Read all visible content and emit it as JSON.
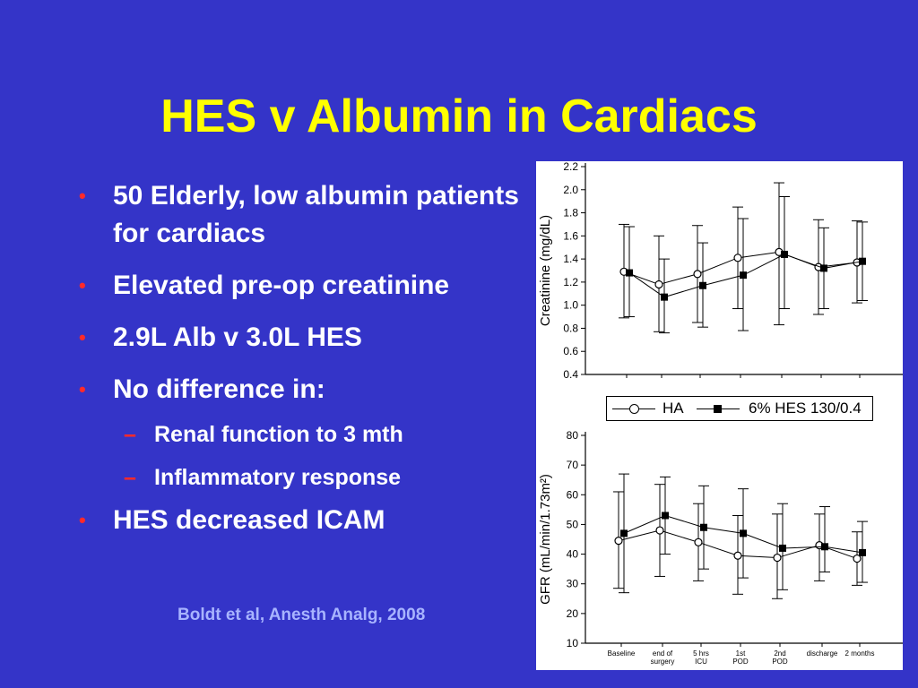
{
  "slide": {
    "title": "HES v Albumin in Cardiacs",
    "bullets": [
      {
        "mark": "•",
        "text": "50 Elderly, low albumin patients for cardiacs"
      },
      {
        "mark": "•",
        "text": "Elevated pre-op creatinine"
      },
      {
        "mark": "•",
        "text": "2.9L Alb v 3.0L HES"
      },
      {
        "mark": "•",
        "text": "No difference in:"
      }
    ],
    "sub_bullets": [
      {
        "mark": "–",
        "text": "Renal function to 3 mth"
      },
      {
        "mark": "–",
        "text": "Inflammatory response"
      }
    ],
    "last_bullet": {
      "mark": "•",
      "text": "HES decreased ICAM"
    },
    "citation": "Boldt et al, Anesth Analg, 2008"
  },
  "colors": {
    "background": "#3434c8",
    "title": "#ffff00",
    "bullet_mark": "#ff2a2a",
    "citation": "#a8b4ff"
  },
  "legend": {
    "ha_label": "HA",
    "hes_label": "6% HES 130/0.4"
  },
  "chart_data": [
    {
      "type": "line",
      "ylabel": "Creatinine (mg/dL)",
      "ylim": [
        0.4,
        2.2
      ],
      "yticks": [
        "0.4",
        "0.6",
        "0.8",
        "1.0",
        "1.2",
        "1.4",
        "1.6",
        "1.8",
        "2.0",
        "2.2"
      ],
      "x": [
        "Baseline",
        "end of surgery",
        "5 hrs ICU",
        "1st POD",
        "2nd POD",
        "discharge",
        "2 months"
      ],
      "show_x_labels": false,
      "grid": false,
      "series": [
        {
          "name": "HA",
          "marker": "open-circle",
          "values": [
            1.29,
            1.18,
            1.27,
            1.41,
            1.46,
            1.33,
            1.37
          ],
          "err_high": [
            1.7,
            1.6,
            1.69,
            1.85,
            2.06,
            1.74,
            1.73
          ],
          "err_low": [
            0.89,
            0.77,
            0.85,
            0.97,
            0.83,
            0.92,
            1.02
          ]
        },
        {
          "name": "6% HES 130/0.4",
          "marker": "filled-square",
          "values": [
            1.28,
            1.07,
            1.17,
            1.26,
            1.44,
            1.32,
            1.38
          ],
          "err_high": [
            1.68,
            1.4,
            1.54,
            1.75,
            1.94,
            1.67,
            1.72
          ],
          "err_low": [
            0.9,
            0.76,
            0.81,
            0.78,
            0.97,
            0.97,
            1.04
          ]
        }
      ]
    },
    {
      "type": "line",
      "ylabel": "GFR (mL/min/1.73m²)",
      "ylim": [
        10,
        80
      ],
      "yticks": [
        "10",
        "20",
        "30",
        "40",
        "50",
        "60",
        "70",
        "80"
      ],
      "x": [
        "Baseline",
        "end of surgery",
        "5 hrs ICU",
        "1st POD",
        "2nd POD",
        "discharge",
        "2 months"
      ],
      "x_label_lines": [
        [
          "Baseline"
        ],
        [
          "end of",
          "surgery"
        ],
        [
          "5 hrs",
          "ICU"
        ],
        [
          "1st",
          "POD"
        ],
        [
          "2nd",
          "POD"
        ],
        [
          "discharge"
        ],
        [
          "2 months"
        ]
      ],
      "show_x_labels": true,
      "grid": false,
      "series": [
        {
          "name": "HA",
          "marker": "open-circle",
          "values": [
            44.5,
            48.0,
            44.0,
            39.5,
            38.8,
            43.0,
            38.5
          ],
          "err_high": [
            61.0,
            63.5,
            57.0,
            53.0,
            53.5,
            53.5,
            47.5
          ],
          "err_low": [
            28.5,
            32.5,
            31.0,
            26.5,
            25.0,
            31.0,
            29.5
          ]
        },
        {
          "name": "6% HES 130/0.4",
          "marker": "filled-square",
          "values": [
            47.0,
            53.0,
            49.0,
            47.0,
            42.0,
            42.5,
            40.5
          ],
          "err_high": [
            67.0,
            66.0,
            63.0,
            62.0,
            57.0,
            56.0,
            51.0
          ],
          "err_low": [
            27.0,
            40.0,
            35.0,
            32.0,
            28.0,
            34.0,
            30.5
          ]
        }
      ]
    }
  ]
}
